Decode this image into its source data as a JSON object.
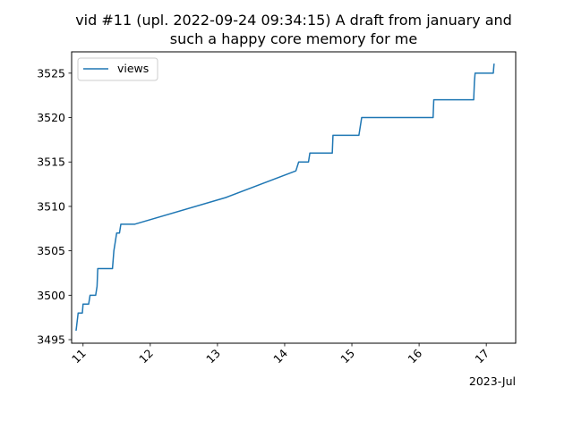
{
  "chart_data": {
    "type": "line",
    "title": "vid #11 (upl. 2022-09-24 09:34:15) A draft from january and such a happy core memory for me",
    "title_lines": [
      "vid #11 (upl. 2022-09-24 09:34:15) A draft from january and",
      "such a happy core memory for me"
    ],
    "xlabel": "",
    "ylabel": "",
    "x_offset_label": "2023-Jul",
    "xlim": [
      "2023-07-10T19:55",
      "2023-07-17T10:30"
    ],
    "ylim": [
      3494.6,
      3527.4
    ],
    "x_ticks": [
      {
        "value": "2023-07-11",
        "label": "11"
      },
      {
        "value": "2023-07-12",
        "label": "12"
      },
      {
        "value": "2023-07-13",
        "label": "13"
      },
      {
        "value": "2023-07-14",
        "label": "14"
      },
      {
        "value": "2023-07-15",
        "label": "15"
      },
      {
        "value": "2023-07-16",
        "label": "16"
      },
      {
        "value": "2023-07-17",
        "label": "17"
      }
    ],
    "y_ticks": [
      3495,
      3500,
      3505,
      3510,
      3515,
      3520,
      3525
    ],
    "grid": false,
    "legend_position": "top-left",
    "series": [
      {
        "name": "views",
        "color": "#1f77b4",
        "points": [
          {
            "x": "2023-07-10T21:30",
            "y": 3496
          },
          {
            "x": "2023-07-10T22:15",
            "y": 3498
          },
          {
            "x": "2023-07-10T23:45",
            "y": 3498
          },
          {
            "x": "2023-07-11T00:00",
            "y": 3499
          },
          {
            "x": "2023-07-11T02:00",
            "y": 3499
          },
          {
            "x": "2023-07-11T02:30",
            "y": 3500
          },
          {
            "x": "2023-07-11T04:30",
            "y": 3500
          },
          {
            "x": "2023-07-11T05:00",
            "y": 3501
          },
          {
            "x": "2023-07-11T05:15",
            "y": 3503
          },
          {
            "x": "2023-07-11T10:30",
            "y": 3503
          },
          {
            "x": "2023-07-11T11:00",
            "y": 3505
          },
          {
            "x": "2023-07-11T11:30",
            "y": 3506
          },
          {
            "x": "2023-07-11T12:00",
            "y": 3507
          },
          {
            "x": "2023-07-11T13:00",
            "y": 3507
          },
          {
            "x": "2023-07-11T13:30",
            "y": 3508
          },
          {
            "x": "2023-07-11T18:30",
            "y": 3508
          },
          {
            "x": "2023-07-13T03:00",
            "y": 3511
          },
          {
            "x": "2023-07-14T04:00",
            "y": 3514
          },
          {
            "x": "2023-07-14T05:00",
            "y": 3515
          },
          {
            "x": "2023-07-14T08:30",
            "y": 3515
          },
          {
            "x": "2023-07-14T09:00",
            "y": 3516
          },
          {
            "x": "2023-07-14T17:00",
            "y": 3516
          },
          {
            "x": "2023-07-14T17:15",
            "y": 3518
          },
          {
            "x": "2023-07-15T02:30",
            "y": 3518
          },
          {
            "x": "2023-07-15T03:00",
            "y": 3519
          },
          {
            "x": "2023-07-15T03:30",
            "y": 3520
          },
          {
            "x": "2023-07-16T05:00",
            "y": 3520
          },
          {
            "x": "2023-07-16T05:15",
            "y": 3522
          },
          {
            "x": "2023-07-16T19:30",
            "y": 3522
          },
          {
            "x": "2023-07-16T19:45",
            "y": 3524
          },
          {
            "x": "2023-07-16T20:00",
            "y": 3525
          },
          {
            "x": "2023-07-17T02:30",
            "y": 3525
          },
          {
            "x": "2023-07-17T02:45",
            "y": 3526
          },
          {
            "x": "2023-07-17T03:00",
            "y": 3526
          }
        ]
      }
    ]
  }
}
